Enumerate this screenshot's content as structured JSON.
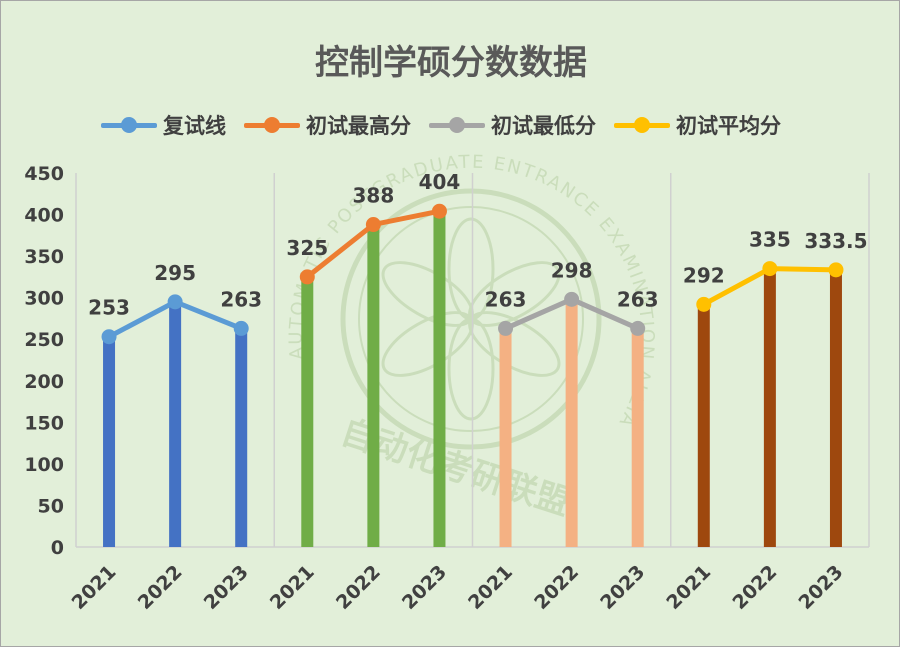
{
  "chart_data": {
    "type": "bar",
    "title": "控制学硕分数数据",
    "ylim": [
      0,
      450
    ],
    "yticks": [
      "0",
      "50",
      "100",
      "150",
      "200",
      "250",
      "300",
      "350",
      "400",
      "450"
    ],
    "legend_position": "top",
    "grid": "vertical separators only",
    "groups": [
      {
        "name": "复试线",
        "categories": [
          "2021",
          "2022",
          "2023"
        ],
        "values": [
          253,
          295,
          263
        ],
        "labels": [
          "253",
          "295",
          "263"
        ],
        "bar_color": "#4472c4",
        "line_color": "#5b9bd5"
      },
      {
        "name": "初试最高分",
        "categories": [
          "2021",
          "2022",
          "2023"
        ],
        "values": [
          325,
          388,
          404
        ],
        "labels": [
          "325",
          "388",
          "404"
        ],
        "bar_color": "#70ad47",
        "line_color": "#ed7d31"
      },
      {
        "name": "初试最低分",
        "categories": [
          "2021",
          "2022",
          "2023"
        ],
        "values": [
          263,
          298,
          263
        ],
        "labels": [
          "263",
          "298",
          "263"
        ],
        "bar_color": "#f4b183",
        "line_color": "#a5a5a5"
      },
      {
        "name": "初试平均分",
        "categories": [
          "2021",
          "2022",
          "2023"
        ],
        "values": [
          292,
          335,
          333.5
        ],
        "labels": [
          "292",
          "335",
          "333.5"
        ],
        "bar_color": "#9e480e",
        "line_color": "#ffc000"
      }
    ]
  },
  "watermark": {
    "arc_text": "AUTOMATIC POSTGRADUATE ENTRANCE EXAMINATION ALLIANCE",
    "name": "自动化考研联盟"
  },
  "colors": {
    "background": "#e2efd9",
    "text": "#404040",
    "title": "#595959"
  }
}
